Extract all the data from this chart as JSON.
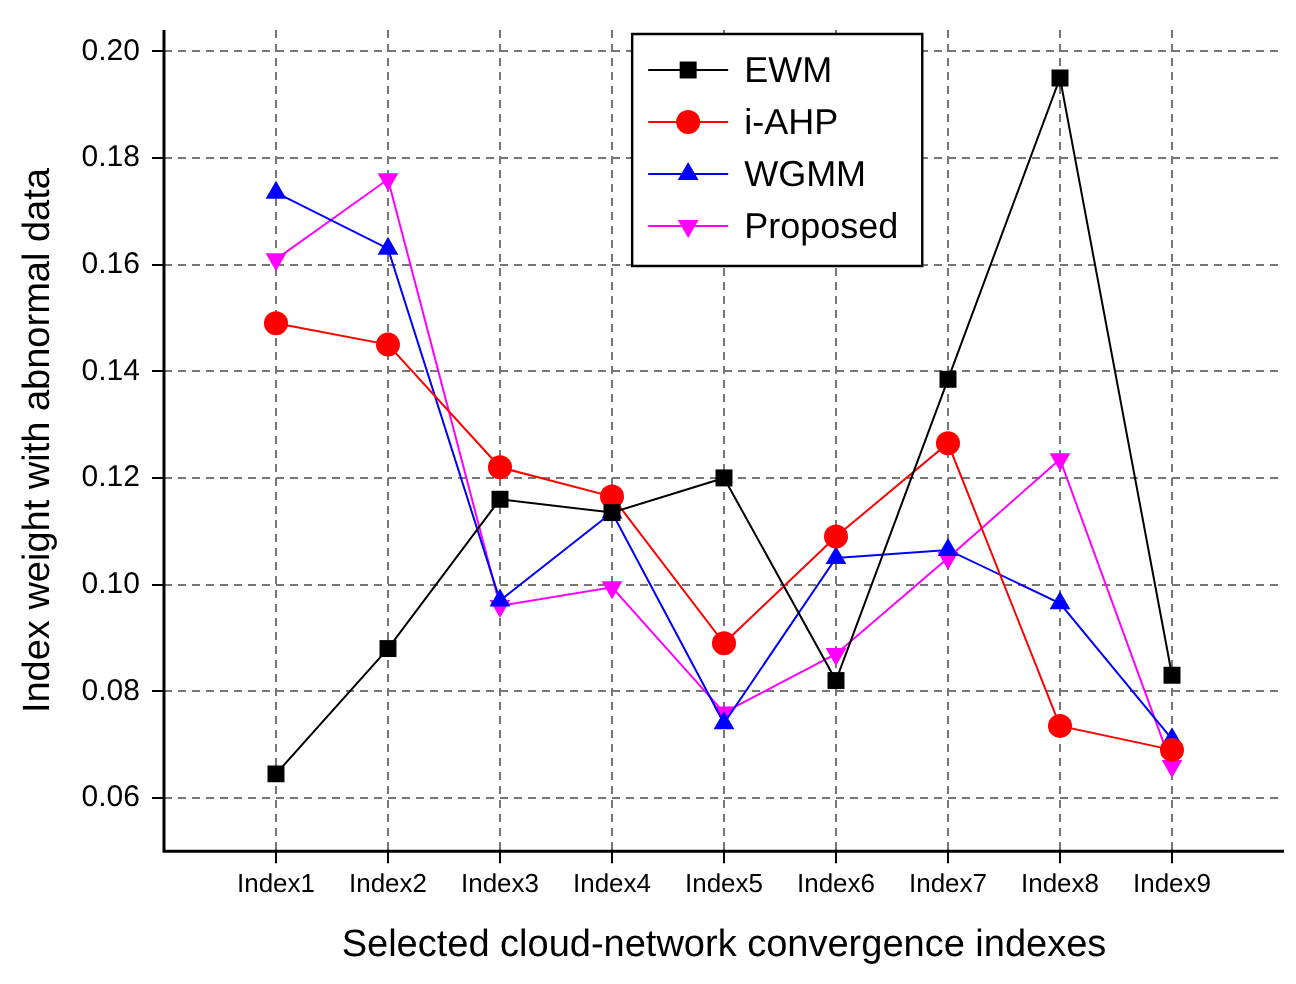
{
  "chart_data": {
    "type": "line",
    "xlabel": "Selected cloud-network convergence indexes",
    "ylabel": "Index weight with abnormal data",
    "categories": [
      "Index1",
      "Index2",
      "Index3",
      "Index4",
      "Index5",
      "Index6",
      "Index7",
      "Index8",
      "Index9"
    ],
    "series": [
      {
        "name": "EWM",
        "color": "#000000",
        "marker": "square",
        "values": [
          0.0645,
          0.088,
          0.116,
          0.1135,
          0.12,
          0.082,
          0.1385,
          0.195,
          0.083
        ]
      },
      {
        "name": "i-AHP",
        "color": "#ff0000",
        "marker": "circle",
        "values": [
          0.149,
          0.145,
          0.122,
          0.1165,
          0.089,
          0.109,
          0.1265,
          0.0735,
          0.069
        ]
      },
      {
        "name": "WGMM",
        "color": "#0000ff",
        "marker": "triangle",
        "values": [
          0.1735,
          0.163,
          0.097,
          0.1135,
          0.074,
          0.105,
          0.1065,
          0.0965,
          0.071
        ]
      },
      {
        "name": "Proposed",
        "color": "#ff00ff",
        "marker": "triangle-down",
        "values": [
          0.161,
          0.176,
          0.096,
          0.0995,
          0.076,
          0.087,
          0.105,
          0.1235,
          0.066
        ]
      }
    ],
    "ylim": [
      0.05,
      0.204
    ],
    "yticks": [
      {
        "value": 0.06,
        "label": "0.06"
      },
      {
        "value": 0.08,
        "label": "0.08"
      },
      {
        "value": 0.1,
        "label": "0.10"
      },
      {
        "value": 0.12,
        "label": "0.12"
      },
      {
        "value": 0.14,
        "label": "0.14"
      },
      {
        "value": 0.16,
        "label": "0.16"
      },
      {
        "value": 0.18,
        "label": "0.18"
      },
      {
        "value": 0.2,
        "label": "0.20"
      }
    ],
    "grid": true,
    "legend": "top right"
  }
}
